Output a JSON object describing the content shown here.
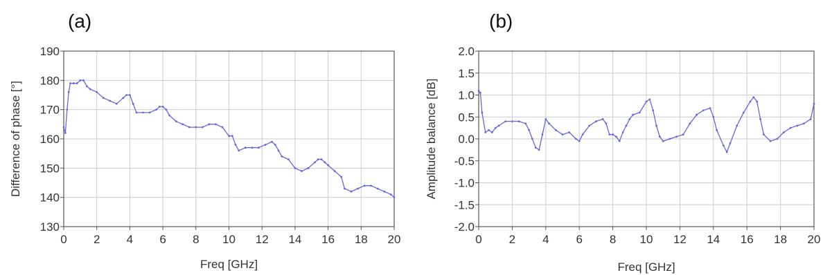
{
  "chart_data": [
    {
      "panel_label": "(a)",
      "type": "line",
      "xlabel": "Freq [GHz]",
      "ylabel": "Difference of phase [°]",
      "xlim": [
        0,
        20
      ],
      "ylim": [
        130,
        190
      ],
      "xticks": [
        0,
        2,
        4,
        6,
        8,
        10,
        12,
        14,
        16,
        18,
        20
      ],
      "yticks": [
        130,
        140,
        150,
        160,
        170,
        180,
        190
      ],
      "xtick_labels": [
        "0",
        "2",
        "4",
        "6",
        "8",
        "10",
        "12",
        "14",
        "16",
        "18",
        "20"
      ],
      "ytick_labels": [
        "130",
        "140",
        "150",
        "160",
        "170",
        "180",
        "190"
      ],
      "grid": true,
      "line_color": "#6666dd",
      "series": [
        {
          "x": [
            0,
            0.1,
            0.2,
            0.3,
            0.4,
            0.6,
            0.8,
            1.0,
            1.2,
            1.4,
            1.6,
            2.0,
            2.4,
            2.8,
            3.2,
            3.6,
            3.8,
            4.0,
            4.2,
            4.4,
            4.8,
            5.2,
            5.6,
            5.8,
            6.0,
            6.2,
            6.4,
            6.8,
            7.2,
            7.6,
            8.0,
            8.4,
            8.8,
            9.2,
            9.6,
            10.0,
            10.2,
            10.4,
            10.6,
            11.0,
            11.4,
            11.8,
            12.2,
            12.6,
            12.8,
            13.0,
            13.2,
            13.6,
            14.0,
            14.4,
            14.8,
            15.2,
            15.4,
            15.6,
            15.8,
            16.0,
            16.4,
            16.8,
            17.0,
            17.4,
            17.8,
            18.2,
            18.6,
            19.0,
            19.4,
            19.8,
            20.0
          ],
          "y": [
            164,
            162,
            170,
            176,
            179,
            179,
            179,
            180,
            180,
            178,
            177,
            176,
            174,
            173,
            172,
            174,
            175,
            175,
            172,
            169,
            169,
            169,
            170,
            171,
            171,
            170,
            168,
            166,
            165,
            164,
            164,
            164,
            165,
            165,
            164,
            161,
            161,
            158,
            156,
            157,
            157,
            157,
            158,
            159,
            158,
            156,
            154,
            153,
            150,
            149,
            150,
            152,
            153,
            153,
            152,
            151,
            149,
            147,
            143,
            142,
            143,
            144,
            144,
            143,
            142,
            141,
            140
          ]
        }
      ]
    },
    {
      "panel_label": "(b)",
      "type": "line",
      "xlabel": "Freq [GHz]",
      "ylabel": "Amplitude balance [dB]",
      "xlim": [
        0,
        20
      ],
      "ylim": [
        -2.0,
        2.0
      ],
      "xticks": [
        0,
        2,
        4,
        6,
        8,
        10,
        12,
        14,
        16,
        18,
        20
      ],
      "yticks": [
        -2.0,
        -1.5,
        -1.0,
        -0.5,
        0.0,
        0.5,
        1.0,
        1.5,
        2.0
      ],
      "xtick_labels": [
        "0",
        "2",
        "4",
        "6",
        "8",
        "10",
        "12",
        "14",
        "16",
        "18",
        "20"
      ],
      "ytick_labels": [
        "-2.0",
        "-1.5",
        "-1.0",
        "-0.5",
        "0.0",
        "0.5",
        "1.0",
        "1.5",
        "2.0"
      ],
      "grid": true,
      "line_color": "#6666dd",
      "series": [
        {
          "x": [
            0,
            0.1,
            0.2,
            0.4,
            0.6,
            0.8,
            1.0,
            1.2,
            1.6,
            2.0,
            2.4,
            2.8,
            3.0,
            3.2,
            3.4,
            3.6,
            3.8,
            4.0,
            4.2,
            4.6,
            5.0,
            5.4,
            5.8,
            6.0,
            6.2,
            6.6,
            7.0,
            7.4,
            7.6,
            7.8,
            8.0,
            8.2,
            8.4,
            8.6,
            8.8,
            9.0,
            9.2,
            9.6,
            10.0,
            10.2,
            10.4,
            10.6,
            10.8,
            11.0,
            11.4,
            11.8,
            12.2,
            12.6,
            13.0,
            13.4,
            13.8,
            14.0,
            14.2,
            14.6,
            14.8,
            15.0,
            15.4,
            15.8,
            16.2,
            16.4,
            16.6,
            16.8,
            17.0,
            17.4,
            17.8,
            18.2,
            18.6,
            19.0,
            19.4,
            19.8,
            20.0
          ],
          "y": [
            1.1,
            1.05,
            0.6,
            0.15,
            0.2,
            0.15,
            0.25,
            0.3,
            0.4,
            0.4,
            0.4,
            0.35,
            0.2,
            0.0,
            -0.2,
            -0.25,
            0.1,
            0.45,
            0.35,
            0.2,
            0.1,
            0.15,
            0.0,
            -0.05,
            0.1,
            0.3,
            0.4,
            0.45,
            0.35,
            0.1,
            0.1,
            0.05,
            -0.05,
            0.15,
            0.3,
            0.45,
            0.55,
            0.6,
            0.85,
            0.9,
            0.65,
            0.3,
            0.05,
            -0.05,
            0.0,
            0.05,
            0.1,
            0.35,
            0.55,
            0.65,
            0.7,
            0.5,
            0.2,
            -0.15,
            -0.3,
            -0.1,
            0.3,
            0.6,
            0.85,
            0.95,
            0.85,
            0.45,
            0.1,
            -0.05,
            0.0,
            0.15,
            0.25,
            0.3,
            0.35,
            0.45,
            0.8
          ]
        }
      ]
    }
  ]
}
